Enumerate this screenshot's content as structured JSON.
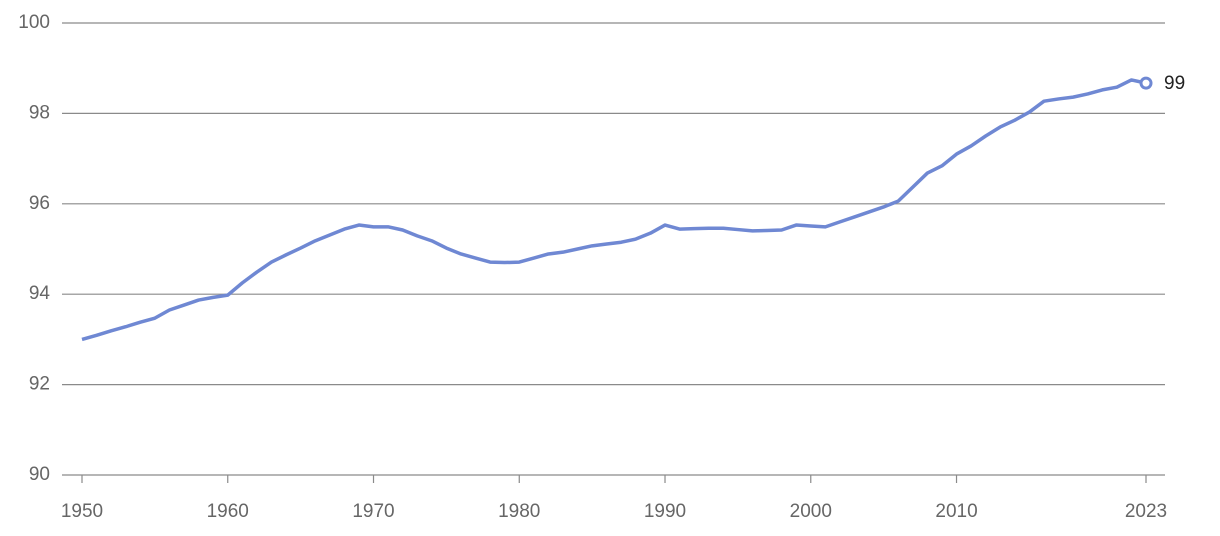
{
  "chart_data": {
    "type": "line",
    "x": [
      1950,
      1951,
      1952,
      1953,
      1954,
      1955,
      1956,
      1957,
      1958,
      1959,
      1960,
      1961,
      1962,
      1963,
      1964,
      1965,
      1966,
      1967,
      1968,
      1969,
      1970,
      1971,
      1972,
      1973,
      1974,
      1975,
      1976,
      1977,
      1978,
      1979,
      1980,
      1981,
      1982,
      1983,
      1984,
      1985,
      1986,
      1987,
      1988,
      1989,
      1990,
      1991,
      1992,
      1993,
      1994,
      1995,
      1996,
      1997,
      1998,
      1999,
      2000,
      2001,
      2002,
      2003,
      2004,
      2005,
      2006,
      2007,
      2008,
      2009,
      2010,
      2011,
      2012,
      2013,
      2014,
      2015,
      2016,
      2017,
      2018,
      2019,
      2020,
      2021,
      2022,
      2023
    ],
    "values": [
      93.0,
      93.09,
      93.19,
      93.28,
      93.38,
      93.47,
      93.65,
      93.76,
      93.87,
      93.93,
      93.98,
      94.25,
      94.49,
      94.71,
      94.87,
      95.02,
      95.18,
      95.31,
      95.44,
      95.53,
      95.49,
      95.49,
      95.42,
      95.29,
      95.18,
      95.02,
      94.89,
      94.8,
      94.71,
      94.7,
      94.71,
      94.8,
      94.89,
      94.93,
      95.0,
      95.07,
      95.11,
      95.15,
      95.22,
      95.35,
      95.53,
      95.44,
      95.45,
      95.46,
      95.46,
      95.43,
      95.4,
      95.41,
      95.42,
      95.53,
      95.51,
      95.49,
      95.6,
      95.71,
      95.82,
      95.93,
      96.06,
      96.37,
      96.68,
      96.84,
      97.1,
      97.28,
      97.5,
      97.7,
      97.85,
      98.03,
      98.27,
      98.32,
      98.36,
      98.43,
      98.52,
      98.58,
      98.74,
      98.67
    ],
    "value_labels": [
      null,
      null,
      null,
      null,
      null,
      null,
      null,
      null,
      null,
      null,
      null,
      null,
      null,
      null,
      null,
      null,
      null,
      null,
      null,
      null,
      null,
      null,
      null,
      null,
      null,
      null,
      null,
      null,
      null,
      null,
      null,
      null,
      null,
      null,
      null,
      null,
      null,
      null,
      null,
      null,
      null,
      null,
      null,
      null,
      null,
      null,
      null,
      null,
      null,
      null,
      null,
      null,
      null,
      null,
      null,
      null,
      null,
      null,
      null,
      null,
      null,
      null,
      null,
      null,
      null,
      null,
      null,
      null,
      null,
      null,
      null,
      null,
      null,
      "99"
    ],
    "color": "#6f88d3",
    "xlim": [
      1950,
      2023
    ],
    "xticks": [
      1950,
      1960,
      1970,
      1980,
      1990,
      2000,
      2010,
      2023
    ],
    "ylim": [
      90,
      100
    ],
    "yticks": [
      90,
      92,
      94,
      96,
      98,
      100
    ],
    "grid": true
  }
}
